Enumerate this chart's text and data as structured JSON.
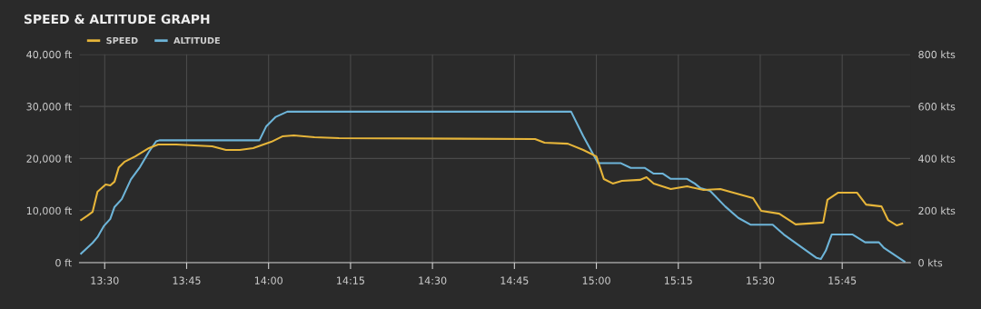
{
  "chart_data": {
    "type": "line",
    "title": "SPEED & ALTITUDE GRAPH",
    "xlim": [
      13.423,
      15.958
    ],
    "xticks": [
      {
        "value": 13.5,
        "label": "13:30"
      },
      {
        "value": 13.75,
        "label": "13:45"
      },
      {
        "value": 14.0,
        "label": "14:00"
      },
      {
        "value": 14.25,
        "label": "14:15"
      },
      {
        "value": 14.5,
        "label": "14:30"
      },
      {
        "value": 14.75,
        "label": "14:45"
      },
      {
        "value": 15.0,
        "label": "15:00"
      },
      {
        "value": 15.25,
        "label": "15:15"
      },
      {
        "value": 15.5,
        "label": "15:30"
      },
      {
        "value": 15.75,
        "label": "15:45"
      }
    ],
    "ylim": [
      0,
      40000
    ],
    "yticks": [
      {
        "value": 0,
        "label": "0 ft"
      },
      {
        "value": 10000,
        "label": "10,000 ft"
      },
      {
        "value": 20000,
        "label": "20,000 ft"
      },
      {
        "value": 30000,
        "label": "30,000 ft"
      },
      {
        "value": 40000,
        "label": "40,000 ft"
      }
    ],
    "y2lim": [
      0,
      800
    ],
    "y2ticks": [
      {
        "value": 0,
        "label": "0 kts"
      },
      {
        "value": 200,
        "label": "200 kts"
      },
      {
        "value": 400,
        "label": "400 kts"
      },
      {
        "value": 600,
        "label": "600 kts"
      },
      {
        "value": 800,
        "label": "800 kts"
      }
    ],
    "grid": true,
    "legend": "top left",
    "marker": "none",
    "line_style": "solid",
    "series": [
      {
        "name": "SPEED",
        "color": "#e6b53a",
        "axis": "y2",
        "x": [
          13.428,
          13.448,
          13.463,
          13.478,
          13.503,
          13.517,
          13.53,
          13.543,
          13.56,
          13.593,
          13.635,
          13.663,
          13.718,
          13.828,
          13.87,
          13.912,
          13.953,
          14.008,
          14.042,
          14.077,
          14.14,
          14.215,
          14.813,
          14.842,
          14.913,
          14.96,
          15.0,
          15.023,
          15.05,
          15.078,
          15.133,
          15.153,
          15.175,
          15.227,
          15.277,
          15.327,
          15.378,
          15.428,
          15.478,
          15.503,
          15.558,
          15.608,
          15.692,
          15.705,
          15.738,
          15.795,
          15.823,
          15.87,
          15.89,
          15.917,
          15.933
        ],
        "values": [
          164,
          181,
          195,
          272,
          300,
          297,
          311,
          366,
          387,
          408,
          440,
          454,
          454,
          447,
          433,
          433,
          440,
          464,
          485,
          489,
          482,
          478,
          475,
          461,
          457,
          433,
          408,
          321,
          304,
          314,
          318,
          328,
          304,
          283,
          293,
          279,
          283,
          265,
          248,
          199,
          188,
          147,
          154,
          241,
          269,
          269,
          223,
          216,
          164,
          143,
          150
        ]
      },
      {
        "name": "ALTITUDE",
        "color": "#6db4d8",
        "x": [
          13.428,
          13.463,
          13.478,
          13.497,
          13.517,
          13.53,
          13.552,
          13.58,
          13.608,
          13.635,
          13.657,
          13.667,
          13.972,
          13.993,
          14.022,
          14.057,
          14.923,
          14.96,
          15.005,
          15.075,
          15.105,
          15.147,
          15.175,
          15.203,
          15.227,
          15.277,
          15.3,
          15.318,
          15.347,
          15.393,
          15.433,
          15.47,
          15.538,
          15.572,
          15.672,
          15.685,
          15.7,
          15.718,
          15.782,
          15.82,
          15.862,
          15.878,
          15.94
        ],
        "values": [
          1750,
          3800,
          4900,
          7000,
          8400,
          10700,
          12200,
          16000,
          18400,
          21300,
          23300,
          23500,
          23500,
          26200,
          28000,
          29000,
          29000,
          24300,
          19100,
          19100,
          18200,
          18200,
          17100,
          17100,
          16100,
          16100,
          15200,
          14300,
          13800,
          10800,
          8600,
          7300,
          7300,
          5400,
          900,
          700,
          2300,
          5400,
          5400,
          3900,
          3900,
          2800,
          200
        ]
      }
    ]
  }
}
